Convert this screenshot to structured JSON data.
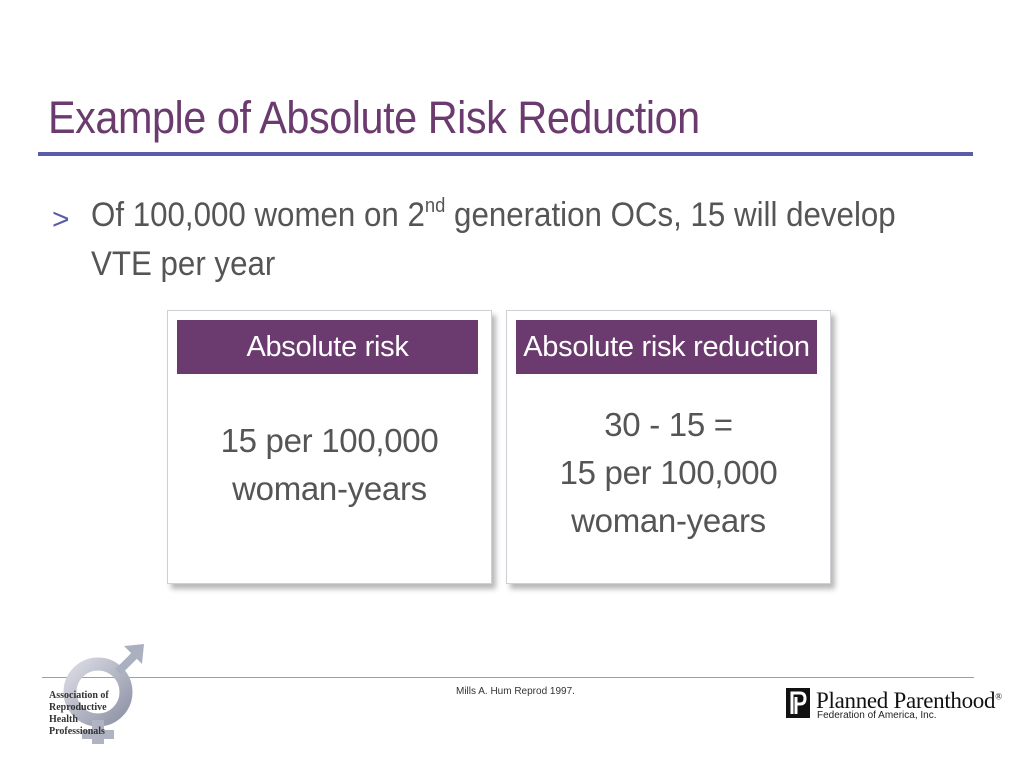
{
  "slide": {
    "title": "Example of Absolute Risk Reduction",
    "bullet": {
      "marker": ">",
      "text_before": "Of 100,000 women on 2",
      "superscript": "nd",
      "text_after": " generation OCs, 15 will develop VTE per year"
    },
    "cards": [
      {
        "header": "Absolute risk",
        "body": [
          "15 per 100,000",
          "woman-years"
        ]
      },
      {
        "header": "Absolute risk reduction",
        "body": [
          "30 - 15 =",
          "15 per 100,000",
          "woman-years"
        ]
      }
    ]
  },
  "footer": {
    "citation": "Mills A. Hum Reprod 1997.",
    "arhp_lines": [
      "Association of",
      "Reproductive",
      "Health",
      "Professionals"
    ],
    "pp_name": "Planned Parenthood",
    "pp_registered": "®",
    "pp_subtitle": "Federation of America, Inc."
  },
  "colors": {
    "title": "#6b3a6e",
    "header_fill": "#6b3a6e",
    "rule": "#5b5ca8",
    "body_text": "#555555"
  },
  "icons": [
    "gender-symbol-logo-icon",
    "planned-parenthood-p-icon"
  ]
}
